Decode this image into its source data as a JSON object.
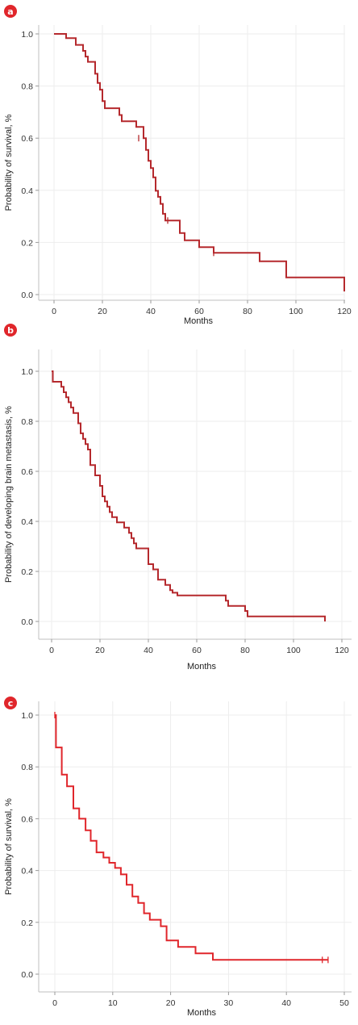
{
  "badge_color": "#e0262b",
  "chart_data": [
    {
      "type": "line",
      "subtype": "kaplan-meier step",
      "panel_label": "a",
      "xlabel": "Months",
      "ylabel": "Probability of survival, %",
      "xlim": [
        0,
        120
      ],
      "ylim": [
        0,
        1
      ],
      "xticks": [
        0,
        20,
        40,
        60,
        80,
        100,
        120
      ],
      "yticks": [
        0.0,
        0.2,
        0.4,
        0.6,
        0.8,
        1.0
      ],
      "xtick_labels": [
        "0",
        "20",
        "40",
        "60",
        "80",
        "100",
        "120"
      ],
      "ytick_labels": [
        "0.0",
        "0.2",
        "0.4",
        "0.6",
        "0.8",
        "1.0"
      ],
      "grid": true,
      "color": "#b5292d",
      "series": [
        {
          "x": [
            0,
            5,
            9,
            12,
            13,
            14,
            17,
            18,
            19,
            20,
            21,
            27,
            28,
            34,
            37,
            38,
            39,
            40,
            41,
            42,
            43,
            44,
            45,
            46,
            50,
            52,
            54,
            60,
            66,
            80,
            85,
            96,
            120
          ],
          "y": [
            1.0,
            0.984,
            0.958,
            0.935,
            0.913,
            0.893,
            0.847,
            0.812,
            0.786,
            0.742,
            0.715,
            0.689,
            0.665,
            0.643,
            0.6,
            0.555,
            0.513,
            0.485,
            0.45,
            0.398,
            0.375,
            0.348,
            0.31,
            0.284,
            0.284,
            0.236,
            0.208,
            0.182,
            0.16,
            0.16,
            0.128,
            0.066,
            0.035
          ],
          "end": [
            120,
            0.012
          ],
          "censored": [
            [
              35,
              0.6
            ],
            [
              47,
              0.284
            ],
            [
              66,
              0.16
            ]
          ]
        }
      ]
    },
    {
      "type": "line",
      "subtype": "kaplan-meier step",
      "panel_label": "b",
      "xlabel": "Months",
      "ylabel": "Probability of developing brain metastasis, %",
      "xlim": [
        0,
        120
      ],
      "ylim": [
        0,
        1
      ],
      "xticks": [
        0,
        20,
        40,
        60,
        80,
        100,
        120
      ],
      "yticks": [
        0.0,
        0.2,
        0.4,
        0.6,
        0.8,
        1.0
      ],
      "xtick_labels": [
        "0",
        "20",
        "40",
        "60",
        "80",
        "100",
        "120"
      ],
      "ytick_labels": [
        "0.0",
        "0.2",
        "0.4",
        "0.6",
        "0.8",
        "1.0"
      ],
      "grid": true,
      "color": "#b5292d",
      "series": [
        {
          "x": [
            0,
            0.5,
            4,
            5,
            6,
            7,
            8,
            9,
            11,
            12,
            13,
            14,
            15,
            16,
            18,
            20,
            21,
            22,
            23,
            24,
            25,
            27,
            30,
            32,
            33,
            34,
            35,
            40,
            42,
            44,
            47,
            49,
            50,
            52,
            70,
            72,
            73,
            80,
            81,
            113
          ],
          "y": [
            1.0,
            0.958,
            0.938,
            0.916,
            0.896,
            0.876,
            0.855,
            0.833,
            0.792,
            0.752,
            0.73,
            0.709,
            0.687,
            0.625,
            0.584,
            0.542,
            0.5,
            0.48,
            0.459,
            0.437,
            0.417,
            0.396,
            0.375,
            0.354,
            0.333,
            0.312,
            0.292,
            0.229,
            0.208,
            0.167,
            0.146,
            0.125,
            0.115,
            0.104,
            0.104,
            0.083,
            0.062,
            0.042,
            0.02,
            0.02
          ],
          "end": [
            113,
            0.0
          ],
          "censored": []
        }
      ]
    },
    {
      "type": "line",
      "subtype": "kaplan-meier step",
      "panel_label": "c",
      "xlabel": "Months",
      "ylabel": "Probability of survival, %",
      "xlim": [
        0,
        50
      ],
      "ylim": [
        0,
        1
      ],
      "xticks": [
        0,
        10,
        20,
        30,
        40,
        50
      ],
      "yticks": [
        0.0,
        0.2,
        0.4,
        0.6,
        0.8,
        1.0
      ],
      "xtick_labels": [
        "0",
        "10",
        "20",
        "30",
        "40",
        "50"
      ],
      "ytick_labels": [
        "0.0",
        "0.2",
        "0.4",
        "0.6",
        "0.8",
        "1.0"
      ],
      "grid": true,
      "color": "#e0262b",
      "series": [
        {
          "x": [
            0,
            0.2,
            1.2,
            2.1,
            3.2,
            4.2,
            5.3,
            6.2,
            7.2,
            8.4,
            9.4,
            10.4,
            11.4,
            12.4,
            13.4,
            14.4,
            15.4,
            16.4,
            18.3,
            19.3,
            21.3,
            24.3,
            27.3,
            47.2
          ],
          "y": [
            1.0,
            0.875,
            0.77,
            0.725,
            0.64,
            0.6,
            0.555,
            0.515,
            0.47,
            0.45,
            0.43,
            0.41,
            0.385,
            0.345,
            0.3,
            0.275,
            0.235,
            0.21,
            0.185,
            0.13,
            0.105,
            0.08,
            0.055,
            0.055
          ],
          "end": [
            47.2,
            0.055
          ],
          "censored": [
            [
              0,
              1.0
            ],
            [
              46.2,
              0.055
            ],
            [
              47.2,
              0.055
            ]
          ]
        }
      ]
    }
  ]
}
